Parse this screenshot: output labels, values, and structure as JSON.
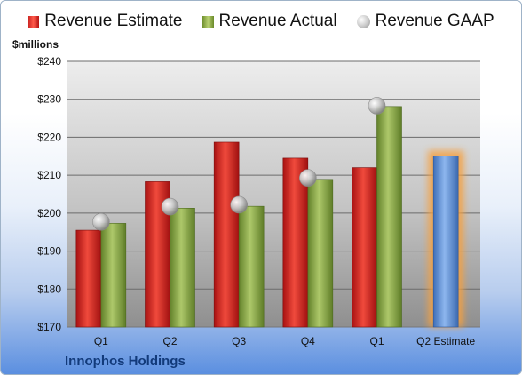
{
  "chart_data": {
    "type": "bar",
    "ylabel": "$millions",
    "categories": [
      "Q1",
      "Q2",
      "Q3",
      "Q4",
      "Q1",
      "Q2 Estimate"
    ],
    "ylim": [
      170,
      240
    ],
    "yticks": [
      "$170",
      "$180",
      "$190",
      "$200",
      "$210",
      "$220",
      "$230",
      "$240"
    ],
    "grid": true,
    "legend": "top",
    "series": [
      {
        "name": "Revenue Estimate",
        "type": "bar",
        "color": "#d42a2a",
        "values": [
          195.5,
          208.3,
          218.7,
          214.5,
          212.0,
          null
        ]
      },
      {
        "name": "Revenue Actual",
        "type": "bar",
        "color": "#8fae4b",
        "values": [
          197.3,
          201.3,
          201.8,
          208.9,
          228.1,
          null
        ]
      },
      {
        "name": "Revenue GAAP",
        "type": "scatter",
        "color": "#b0b0b0",
        "values": [
          197.7,
          201.7,
          202.2,
          209.3,
          228.3,
          null
        ]
      },
      {
        "name": "",
        "type": "bar",
        "color": "#5b8fd6",
        "highlight": true,
        "values": [
          null,
          null,
          null,
          null,
          null,
          215.1
        ]
      }
    ]
  },
  "footer": {
    "company": "Innophos Holdings"
  },
  "colors": {
    "plot_bg_top": "#ededed",
    "plot_bg_bottom": "#8f8f8f",
    "highlight_glow": "#f5a040"
  }
}
